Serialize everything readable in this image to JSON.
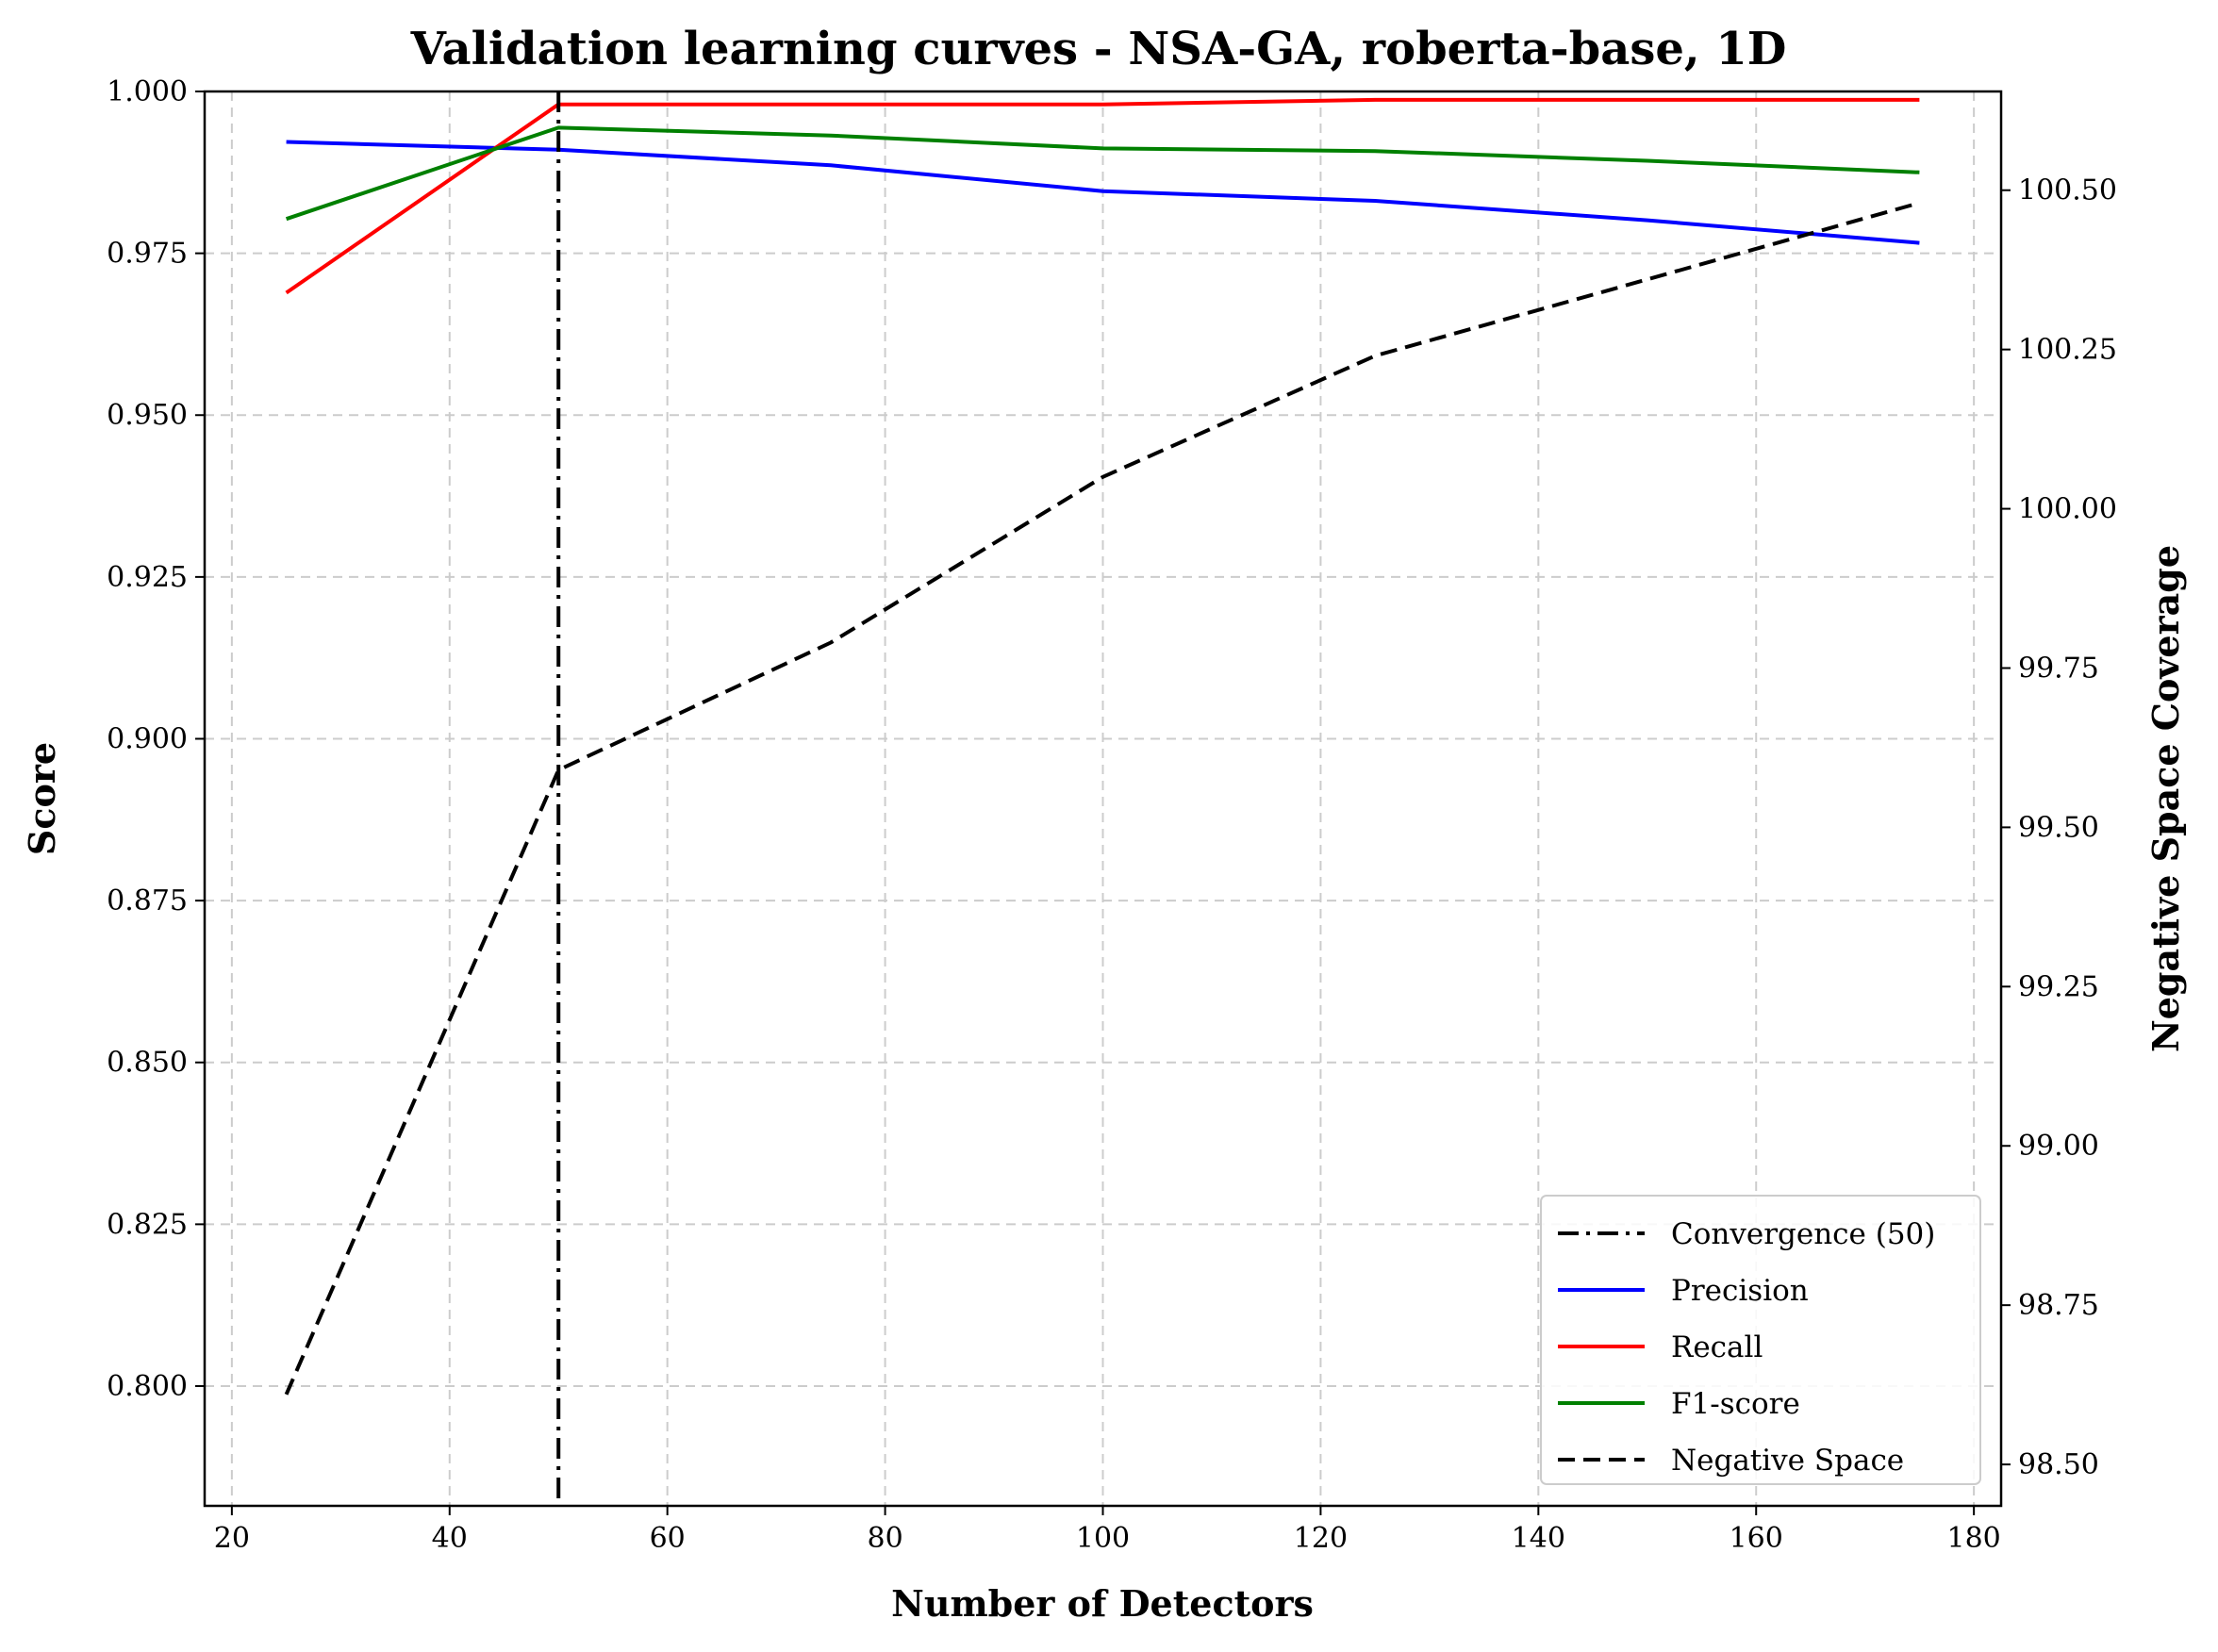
{
  "chart_data": {
    "type": "line",
    "title": "Validation learning curves - NSA-GA, roberta-base, 1D",
    "xlabel": "Number of Detectors",
    "ylabel": "Score",
    "y2label": "Negative Space Coverage",
    "xlim": [
      17.5,
      182.5
    ],
    "ylim": [
      0.7815,
      1.0
    ],
    "y2lim": [
      98.435,
      100.655
    ],
    "x_ticks": [
      20,
      40,
      60,
      80,
      100,
      120,
      140,
      160,
      180
    ],
    "y_ticks": [
      0.8,
      0.825,
      0.85,
      0.875,
      0.9,
      0.925,
      0.95,
      0.975,
      1.0
    ],
    "y2_ticks": [
      98.5,
      98.75,
      99.0,
      99.25,
      99.5,
      99.75,
      100.0,
      100.25,
      100.5
    ],
    "x_tick_labels": [
      "20",
      "40",
      "60",
      "80",
      "100",
      "120",
      "140",
      "160",
      "180"
    ],
    "y_tick_labels": [
      "0.800",
      "0.825",
      "0.850",
      "0.875",
      "0.900",
      "0.925",
      "0.950",
      "0.975",
      "1.000"
    ],
    "y2_tick_labels": [
      "98.50",
      "98.75",
      "99.00",
      "99.25",
      "99.50",
      "99.75",
      "100.00",
      "100.25",
      "100.50"
    ],
    "grid": true,
    "legend_position": "bottom-right",
    "x": [
      25,
      50,
      75,
      100,
      125,
      150,
      175
    ],
    "series": [
      {
        "name": "Precision",
        "axis": "left",
        "color": "#0000ff",
        "style": "solid",
        "values": [
          0.9922,
          0.991,
          0.9886,
          0.9846,
          0.9831,
          0.9801,
          0.9766
        ]
      },
      {
        "name": "Recall",
        "axis": "left",
        "color": "#ff0000",
        "style": "solid",
        "values": [
          0.9689,
          0.998,
          0.998,
          0.998,
          0.9987,
          0.9987,
          0.9987
        ]
      },
      {
        "name": "F1-score",
        "axis": "left",
        "color": "#008000",
        "style": "solid",
        "values": [
          0.9803,
          0.9944,
          0.9932,
          0.9912,
          0.9908,
          0.9893,
          0.9875
        ]
      },
      {
        "name": "Negative Space",
        "axis": "right",
        "color": "#000000",
        "style": "dashed",
        "values": [
          98.61,
          99.59,
          99.79,
          100.05,
          100.24,
          100.36,
          100.48
        ]
      }
    ],
    "annotations": [
      {
        "type": "vline",
        "x": 50,
        "label": "Convergence (50)",
        "color": "#000000",
        "style": "dashdot"
      }
    ],
    "legend_entries": [
      {
        "label": "Convergence (50)",
        "color": "#000000",
        "style": "dashdot"
      },
      {
        "label": "Precision",
        "color": "#0000ff",
        "style": "solid"
      },
      {
        "label": "Recall",
        "color": "#ff0000",
        "style": "solid"
      },
      {
        "label": "F1-score",
        "color": "#008000",
        "style": "solid"
      },
      {
        "label": "Negative Space",
        "color": "#000000",
        "style": "dashed"
      }
    ]
  }
}
